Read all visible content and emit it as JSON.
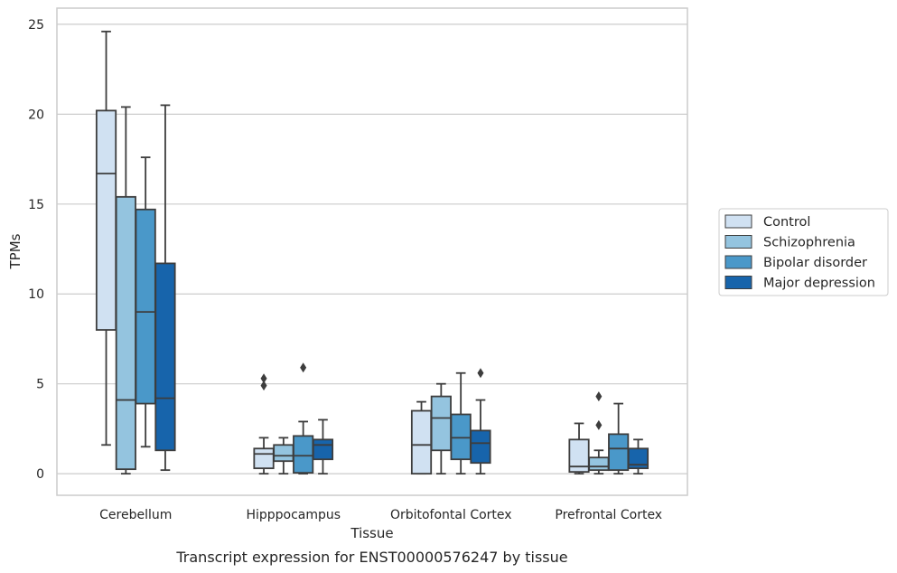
{
  "chart_data": {
    "type": "box",
    "title": "Transcript expression for ENST00000576247 by tissue",
    "xlabel": "Tissue",
    "ylabel": "TPMs",
    "ylim": [
      -1.2,
      25.9
    ],
    "yticks": [
      0,
      5,
      10,
      15,
      20,
      25
    ],
    "grid": "horizontal",
    "legend_position": "right",
    "categories": [
      "Cerebellum",
      "Hipppocampus",
      "Orbitofontal Cortex",
      "Prefrontal Cortex"
    ],
    "series": [
      {
        "name": "Control",
        "color": "#d0e1f2",
        "boxes": [
          {
            "whislo": 1.6,
            "q1": 8.0,
            "med": 16.7,
            "q3": 20.2,
            "whishi": 24.6,
            "fliers": []
          },
          {
            "whislo": 0.0,
            "q1": 0.3,
            "med": 1.1,
            "q3": 1.4,
            "whishi": 2.0,
            "fliers": [
              4.9,
              5.3
            ]
          },
          {
            "whislo": 0.0,
            "q1": 0.0,
            "med": 1.6,
            "q3": 3.5,
            "whishi": 4.0,
            "fliers": []
          },
          {
            "whislo": 0.0,
            "q1": 0.1,
            "med": 0.4,
            "q3": 1.9,
            "whishi": 2.8,
            "fliers": []
          }
        ]
      },
      {
        "name": "Schizophrenia",
        "color": "#94c4df",
        "boxes": [
          {
            "whislo": 0.0,
            "q1": 0.25,
            "med": 4.1,
            "q3": 15.4,
            "whishi": 20.4,
            "fliers": []
          },
          {
            "whislo": 0.0,
            "q1": 0.7,
            "med": 1.0,
            "q3": 1.6,
            "whishi": 2.0,
            "fliers": []
          },
          {
            "whislo": 0.0,
            "q1": 1.3,
            "med": 3.1,
            "q3": 4.3,
            "whishi": 5.0,
            "fliers": []
          },
          {
            "whislo": 0.0,
            "q1": 0.2,
            "med": 0.4,
            "q3": 0.9,
            "whishi": 1.3,
            "fliers": [
              2.7,
              4.3
            ]
          }
        ]
      },
      {
        "name": "Bipolar disorder",
        "color": "#4a98c9",
        "boxes": [
          {
            "whislo": 1.5,
            "q1": 3.9,
            "med": 9.0,
            "q3": 14.7,
            "whishi": 17.6,
            "fliers": []
          },
          {
            "whislo": 0.0,
            "q1": 0.05,
            "med": 1.0,
            "q3": 2.1,
            "whishi": 2.9,
            "fliers": [
              5.9
            ]
          },
          {
            "whislo": 0.0,
            "q1": 0.8,
            "med": 2.0,
            "q3": 3.3,
            "whishi": 5.6,
            "fliers": []
          },
          {
            "whislo": 0.0,
            "q1": 0.2,
            "med": 1.4,
            "q3": 2.2,
            "whishi": 3.9,
            "fliers": []
          }
        ]
      },
      {
        "name": "Major depression",
        "color": "#1764ab",
        "boxes": [
          {
            "whislo": 0.2,
            "q1": 1.3,
            "med": 4.2,
            "q3": 11.7,
            "whishi": 20.5,
            "fliers": []
          },
          {
            "whislo": 0.0,
            "q1": 0.8,
            "med": 1.6,
            "q3": 1.9,
            "whishi": 3.0,
            "fliers": []
          },
          {
            "whislo": 0.0,
            "q1": 0.6,
            "med": 1.7,
            "q3": 2.4,
            "whishi": 4.1,
            "fliers": [
              5.6
            ]
          },
          {
            "whislo": 0.0,
            "q1": 0.3,
            "med": 0.5,
            "q3": 1.4,
            "whishi": 1.9,
            "fliers": []
          }
        ]
      }
    ]
  }
}
